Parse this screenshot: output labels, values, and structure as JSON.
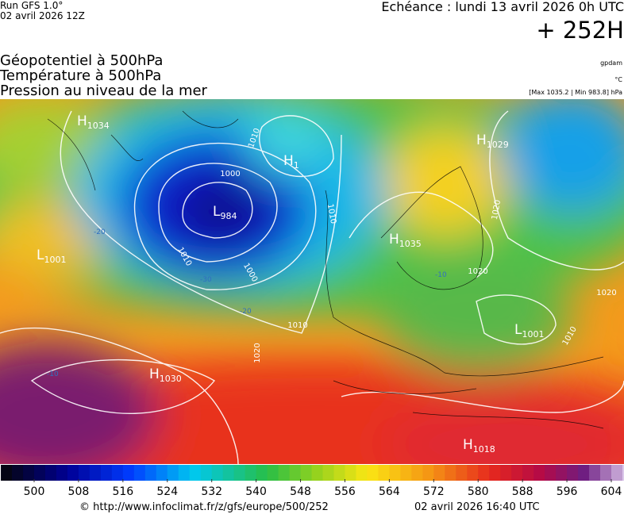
{
  "header": {
    "run": "Run GFS 1.0°",
    "run_date": "02 avril 2026 12Z",
    "echeance": "Echéance : lundi 13 avril 2026 0h UTC",
    "lead": "+ 252H"
  },
  "titles": [
    "Géopotentiel à 500hPa",
    "Température à 500hPa",
    "Pression au niveau de la mer"
  ],
  "units": {
    "geopotential": "gpdam",
    "temperature": "°C",
    "pressure": "[Max 1035.2 | Min 983.8] hPa"
  },
  "centers": [
    {
      "letter": "H",
      "value": "1034"
    },
    {
      "letter": "H",
      "value": "1"
    },
    {
      "letter": "L",
      "value": "984"
    },
    {
      "letter": "H",
      "value": "1029"
    },
    {
      "letter": "L",
      "value": "1001"
    },
    {
      "letter": "H",
      "value": "1035"
    },
    {
      "letter": "L",
      "value": "1001"
    },
    {
      "letter": "H",
      "value": "1030"
    },
    {
      "letter": "H",
      "value": "1018"
    }
  ],
  "isobar_labels": [
    "1010",
    "1000",
    "1010",
    "1010",
    "1000",
    "1010",
    "1020",
    "1020",
    "1020",
    "1020",
    "1010"
  ],
  "temperature_labels": [
    "-20",
    "-30",
    "-20",
    "-10",
    "-10"
  ],
  "colorbar": {
    "ticks": [
      500,
      508,
      516,
      524,
      532,
      540,
      548,
      556,
      564,
      572,
      580,
      588,
      596,
      604
    ]
  },
  "footer": {
    "url": "© http://www.infoclimat.fr/z/gfs/europe/500/252",
    "generated": "02 avril 2026 16:40 UTC"
  }
}
